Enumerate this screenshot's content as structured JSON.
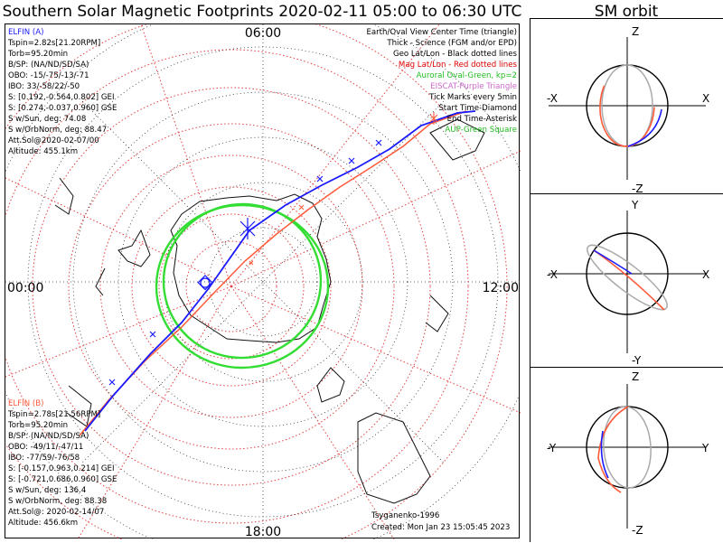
{
  "header": {
    "title": "Southern Solar Magnetic Footprints 2020-02-11 05:00 to 06:30 UTC",
    "side_title": "SM orbit"
  },
  "map": {
    "time_labels": {
      "top": "06:00",
      "left": "00:00",
      "right": "12:00",
      "bottom": "18:00"
    },
    "elfin_a": {
      "title": "ELFIN (A)",
      "color": "#1a1aff",
      "lines": [
        "Tspin=2.82s[21.20RPM]",
        "Torb=95.20min",
        "B/SP: (NA/ND/SD/SA)",
        "OBO: -15/-75/-13/-71",
        "IBO: 33/-58/22/-50",
        "S: [0.192,-0.564,0.802] GEI",
        "S: [0.274,-0.037,0.960] GSE",
        "S w/Sun, deg: 74.08",
        "S w/OrbNorm, deg: 88.47",
        "Att.Sol@2020-02-07/00",
        "Altitude: 455.1km"
      ]
    },
    "elfin_b": {
      "title": "ELFIN (B)",
      "color": "#ff6a3d",
      "lines": [
        "Tspin=2.78s[21.56RPM]",
        "Torb=95.20min",
        "B/SP: (NA/ND/SD/SA)",
        "OBO: -49/11/-47/11",
        "IBO: -77/59/-76/58",
        "S: [-0.157,0.963,0.214] GEI",
        "S: [-0.721,0.686,0.960] GSE",
        "S w/Sun, deg: 136.4",
        "S w/OrbNorm, deg: 88.38",
        "Att.Sol@: 2020-02-14/07",
        "Altitude: 456.6km"
      ]
    },
    "legend": [
      {
        "text": "Earth/Oval View Center Time (triangle)",
        "color": "#000000"
      },
      {
        "text": "Thick - Science (FGM and/or EPD)",
        "color": "#000000"
      },
      {
        "text": "Geo Lat/Lon - Black dotted lines",
        "color": "#000000"
      },
      {
        "text": "Mag Lat/Lon - Red dotted lines",
        "color": "#dd0000"
      },
      {
        "text": "Auroral Oval-Green, kp=2",
        "color": "#22bb22"
      },
      {
        "text": "EISCAT-Purple Triangle",
        "color": "#cc66cc"
      },
      {
        "text": "Tick Marks every 5min",
        "color": "#000000"
      },
      {
        "text": "Start Time-Diamond",
        "color": "#000000"
      },
      {
        "text": "End Time-Asterisk",
        "color": "#000000"
      },
      {
        "text": "AUP-Green Square",
        "color": "#22bb22"
      }
    ],
    "credit": "Tsyganenko-1996",
    "created": "Created: Mon Jan 23 15:05:45 2023"
  },
  "sm_orbit": {
    "panels": [
      {
        "top": "Z",
        "bottom": "-Z",
        "left": "-X",
        "right": "X"
      },
      {
        "top": "Y",
        "bottom": "-Y",
        "left": "-X",
        "right": "X"
      },
      {
        "top": "Z",
        "bottom": "-Z",
        "left": "-Y",
        "right": "Y"
      }
    ]
  }
}
